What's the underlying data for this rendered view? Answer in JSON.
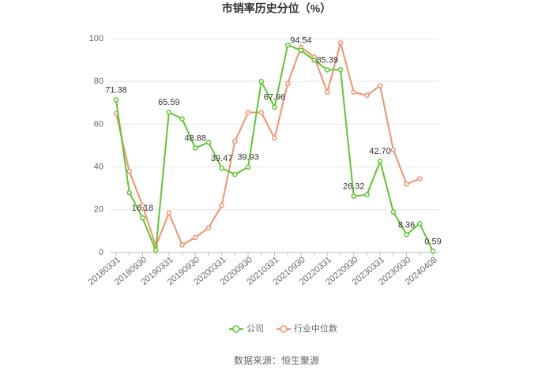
{
  "chart_data": {
    "type": "line",
    "title": "市销率历史分位（%）",
    "source": "数据来源：恒生聚源",
    "categories": [
      "20180331",
      null,
      "20180930",
      null,
      "20190331",
      null,
      "20190930",
      null,
      "20200331",
      null,
      "20200930",
      null,
      "20210331",
      null,
      "20210930",
      null,
      "20220331",
      null,
      "20220930",
      null,
      "20230331",
      null,
      "20230930",
      null,
      "20240408"
    ],
    "series": [
      {
        "name": "公司",
        "color": "#5cc82e",
        "values": [
          71.38,
          28,
          16.18,
          1,
          65.59,
          62.5,
          48.88,
          51.5,
          39.47,
          36.5,
          39.93,
          80,
          67.96,
          97,
          94.54,
          90,
          85.39,
          85.5,
          26.32,
          27,
          42.7,
          19,
          8.36,
          13.5,
          0.59
        ],
        "value_labels": [
          "71.38",
          null,
          "16.18",
          null,
          "65.59",
          null,
          "48.88",
          null,
          "39.47",
          null,
          "39.93",
          null,
          "67.96",
          null,
          "94.54",
          null,
          "85.39",
          null,
          "26.32",
          null,
          "42.70",
          null,
          "8.36",
          null,
          "0.59"
        ]
      },
      {
        "name": "行业中位数",
        "color": "#f4926a",
        "values": [
          65,
          38,
          22,
          3,
          18.5,
          3.5,
          7,
          11.5,
          22,
          52,
          65.5,
          65.5,
          53.5,
          79,
          96,
          91.5,
          75,
          98,
          75,
          73.5,
          78,
          48,
          32,
          34.5,
          null
        ]
      }
    ],
    "ylim": [
      0,
      100
    ],
    "yticks": [
      0,
      20,
      40,
      60,
      80,
      100
    ],
    "grid": true,
    "legend": "bottom"
  }
}
